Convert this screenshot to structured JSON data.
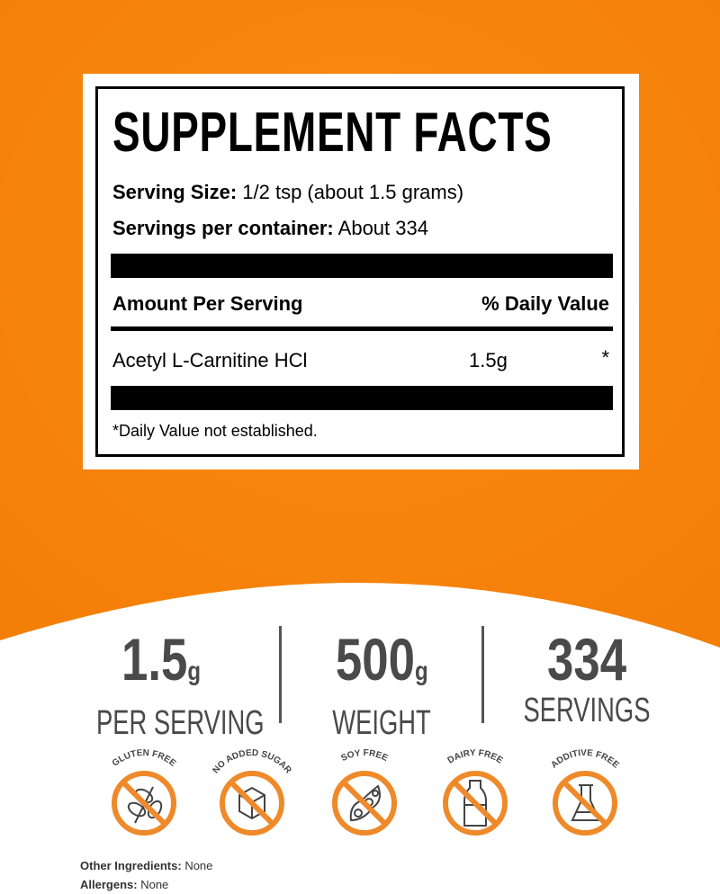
{
  "colors": {
    "orange": "#f7850f",
    "icon_orange": "#ee8a2a",
    "stat_gray": "#4a4a4a"
  },
  "label": {
    "title": "SUPPLEMENT FACTS",
    "serving_size_label": "Serving Size:",
    "serving_size_value": "1/2 tsp (about 1.5 grams)",
    "servings_label": "Servings per container:",
    "servings_value": "About 334",
    "amount_header": "Amount Per Serving",
    "dv_header": "% Daily Value",
    "ingredient": {
      "name": "Acetyl L-Carnitine HCl",
      "amount": "1.5g",
      "dv": "*"
    },
    "footnote": "*Daily Value not established."
  },
  "stats": [
    {
      "value": "1.5",
      "unit": "g",
      "label": "PER SERVING"
    },
    {
      "value": "500",
      "unit": "g",
      "label": "WEIGHT"
    },
    {
      "value": "334",
      "unit": "",
      "label": "SERVINGS"
    }
  ],
  "badges": [
    {
      "text": "GLUTEN FREE",
      "icon": "wheat-icon"
    },
    {
      "text": "NO ADDED SUGAR",
      "icon": "sugar-cube-icon"
    },
    {
      "text": "SOY FREE",
      "icon": "soybean-icon"
    },
    {
      "text": "DAIRY FREE",
      "icon": "milk-bottle-icon"
    },
    {
      "text": "ADDITIVE FREE",
      "icon": "flask-icon"
    }
  ],
  "footer": {
    "other_label": "Other Ingredients:",
    "other_value": "None",
    "allergens_label": "Allergens:",
    "allergens_value": "None"
  }
}
